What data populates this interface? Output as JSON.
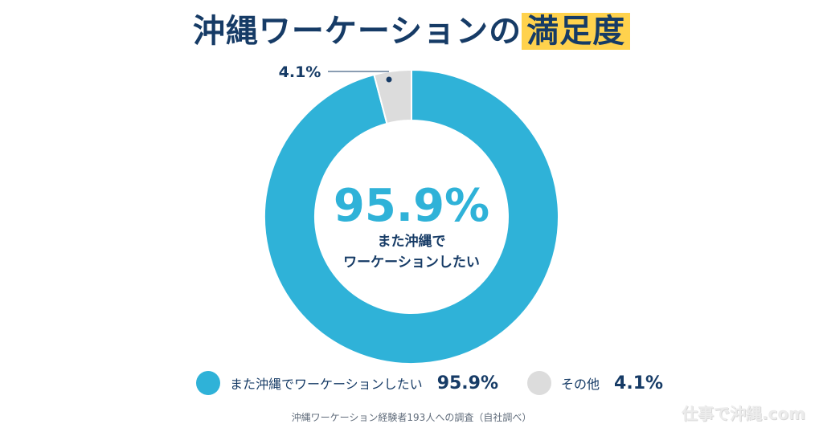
{
  "header": {
    "title_main": "沖縄ワーケーションの",
    "title_highlight": "満足度"
  },
  "chart_data": {
    "type": "pie",
    "categories": [
      "また沖縄でワーケーションしたい",
      "その他"
    ],
    "values": [
      95.9,
      4.1
    ],
    "value_labels": [
      "95.9%",
      "4.1%"
    ],
    "colors": [
      "#2fb2d8",
      "#dcdcdc"
    ],
    "center": {
      "value_label": "95.9%",
      "caption_line1": "また沖縄で",
      "caption_line2": "ワーケーションしたい"
    },
    "legend_position": "bottom",
    "donut": true
  },
  "legend": [
    {
      "label": "また沖縄でワーケーションしたい",
      "value": "95.9%",
      "color": "#2fb2d8"
    },
    {
      "label": "その他",
      "value": "4.1%",
      "color": "#dcdcdc"
    }
  ],
  "footer": {
    "source": "沖縄ワーケーション経験者193人への調査（自社調べ）",
    "brand": "仕事で沖縄.com"
  }
}
